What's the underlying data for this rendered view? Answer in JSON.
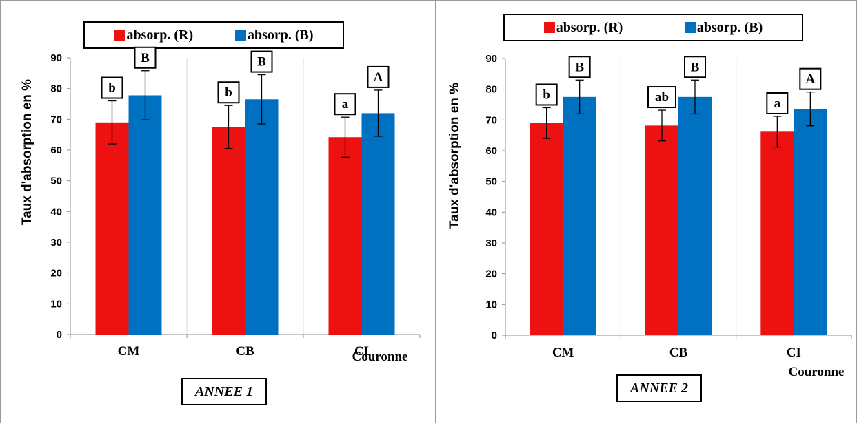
{
  "colors": {
    "absorp_R": "#ee1111",
    "absorp_B": "#0070c0"
  },
  "chart_data": [
    {
      "type": "bar",
      "ylabel": "Taux d'absorption en %",
      "xlabel": "Couronne",
      "annotation": "ANNEE 1",
      "categories": [
        "CM",
        "CB",
        "CI"
      ],
      "ylim": [
        0,
        90
      ],
      "yticks": [
        0,
        10,
        20,
        30,
        40,
        50,
        60,
        70,
        80,
        90
      ],
      "legend_position": "top",
      "series": [
        {
          "name": "absorp. (R)",
          "color": "#ee1111",
          "values": [
            69,
            67.5,
            64.2
          ],
          "error": [
            7,
            7,
            6.5
          ],
          "letters": [
            "b",
            "b",
            "a"
          ]
        },
        {
          "name": "absorp. (B)",
          "color": "#0070c0",
          "values": [
            77.8,
            76.5,
            72
          ],
          "error": [
            8,
            8,
            7.5
          ],
          "letters": [
            "B",
            "B",
            "A"
          ]
        }
      ]
    },
    {
      "type": "bar",
      "ylabel": "Taux d'absorption en %",
      "xlabel": "Couronne",
      "annotation": "ANNEE 2",
      "categories": [
        "CM",
        "CB",
        "CI"
      ],
      "ylim": [
        0,
        90
      ],
      "yticks": [
        0,
        10,
        20,
        30,
        40,
        50,
        60,
        70,
        80,
        90
      ],
      "legend_position": "top",
      "series": [
        {
          "name": "absorp. (R)",
          "color": "#ee1111",
          "values": [
            69,
            68.2,
            66.2
          ],
          "error": [
            5,
            5,
            5
          ],
          "letters": [
            "b",
            "ab",
            "a"
          ]
        },
        {
          "name": "absorp. (B)",
          "color": "#0070c0",
          "values": [
            77.5,
            77.5,
            73.6
          ],
          "error": [
            5.5,
            5.5,
            5.5
          ],
          "letters": [
            "B",
            "B",
            "A"
          ]
        }
      ]
    }
  ]
}
